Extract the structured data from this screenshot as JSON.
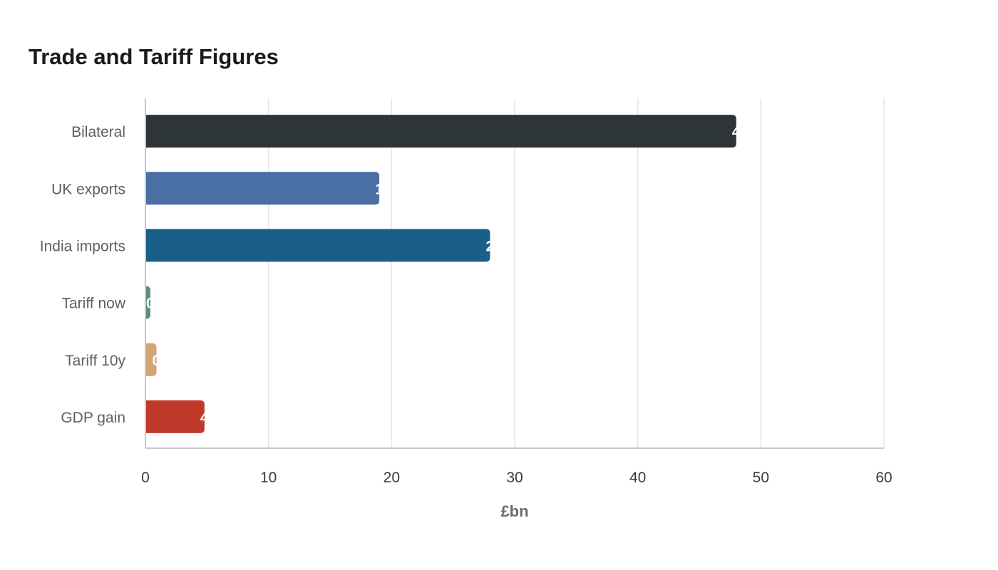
{
  "chart_data": {
    "type": "bar",
    "orientation": "horizontal",
    "title": "Trade and Tariff Figures",
    "xlabel": "£bn",
    "ylabel": "",
    "xlim": [
      0,
      60
    ],
    "xticks": [
      0,
      10,
      20,
      30,
      40,
      50,
      60
    ],
    "grid": true,
    "legend": "none",
    "categories": [
      "Bilateral",
      "UK exports",
      "India imports",
      "Tariff now",
      "Tariff 10y",
      "GDP gain"
    ],
    "values": [
      48,
      19,
      28,
      0.4,
      0.9,
      4.8
    ],
    "colors": [
      "#2e3538",
      "#4a6fa5",
      "#1a5f88",
      "#5a8f7b",
      "#d4a373",
      "#c0392b"
    ]
  }
}
